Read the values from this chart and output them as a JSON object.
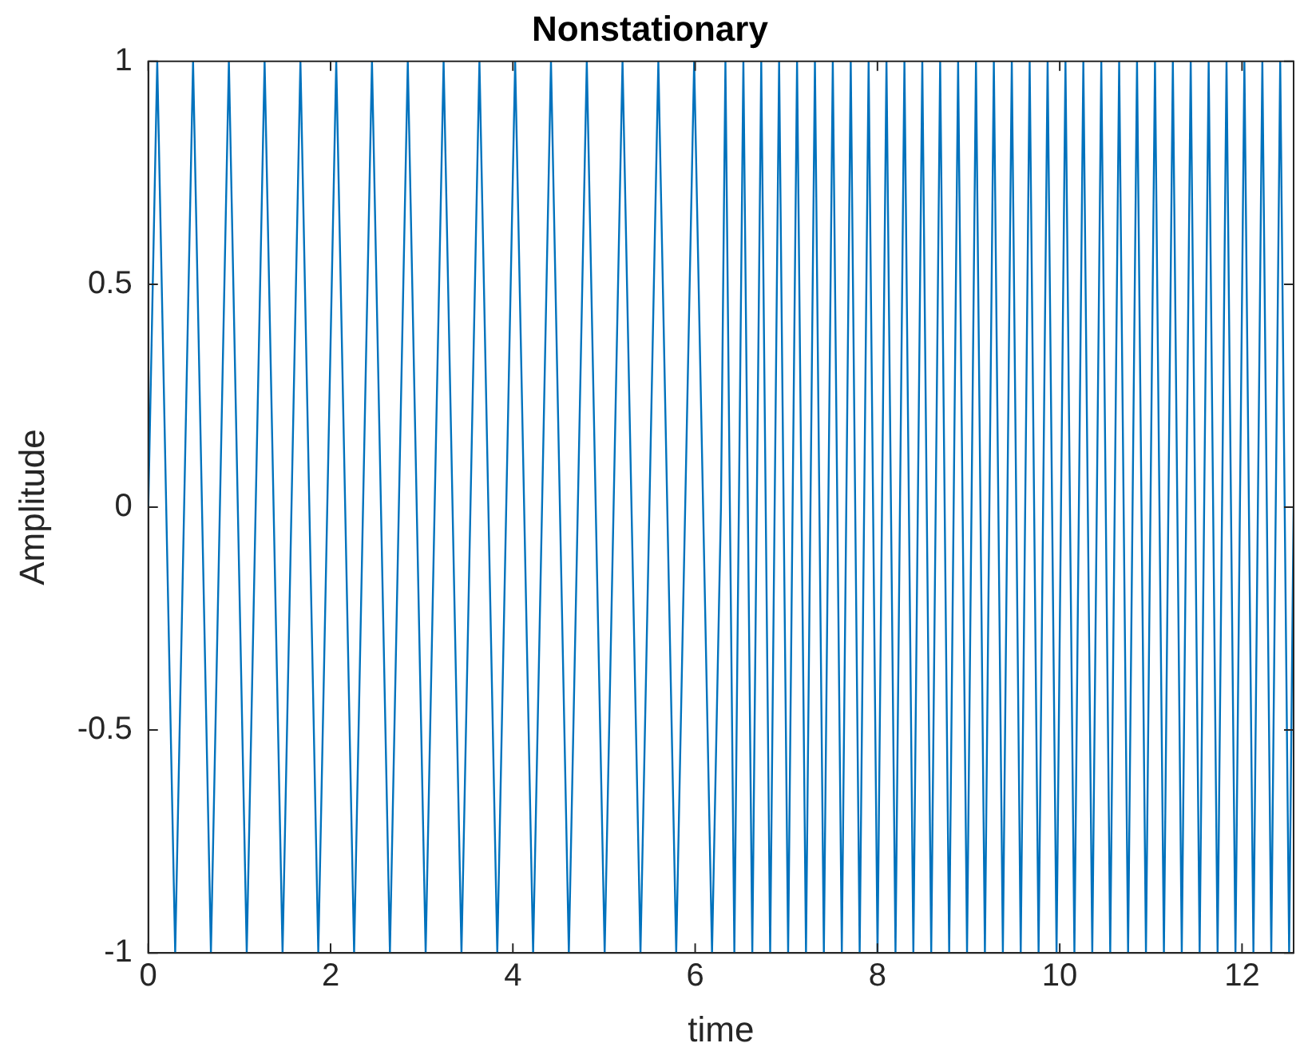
{
  "chart_data": {
    "type": "line",
    "title": "Nonstationary",
    "xlabel": "time",
    "ylabel": "Amplitude",
    "color": "#0072bd",
    "grid": false,
    "legend": false,
    "marker": "none",
    "line_style": "solid",
    "xlim": [
      0,
      12.566
    ],
    "xticks": [
      0,
      2,
      4,
      6,
      8,
      10,
      12
    ],
    "ylim": [
      -1,
      1
    ],
    "yticks": [
      -1,
      -0.5,
      0,
      0.5,
      1
    ],
    "x": [
      0,
      0.098,
      0.295,
      0.491,
      0.687,
      0.884,
      1.08,
      1.276,
      1.473,
      1.669,
      1.865,
      2.062,
      2.258,
      2.454,
      2.651,
      2.847,
      3.043,
      3.24,
      3.436,
      3.633,
      3.829,
      4.025,
      4.222,
      4.418,
      4.614,
      4.811,
      5.007,
      5.203,
      5.4,
      5.596,
      5.792,
      5.989,
      6.185,
      6.283,
      6.332,
      6.43,
      6.529,
      6.627,
      6.725,
      6.823,
      6.921,
      7.02,
      7.118,
      7.216,
      7.314,
      7.412,
      7.51,
      7.609,
      7.707,
      7.805,
      7.903,
      8.001,
      8.099,
      8.198,
      8.296,
      8.394,
      8.492,
      8.59,
      8.688,
      8.787,
      8.885,
      8.983,
      9.081,
      9.179,
      9.277,
      9.376,
      9.474,
      9.572,
      9.67,
      9.768,
      9.867,
      9.965,
      10.063,
      10.161,
      10.259,
      10.357,
      10.456,
      10.554,
      10.652,
      10.75,
      10.848,
      10.946,
      11.045,
      11.143,
      11.241,
      11.339,
      11.437,
      11.535,
      11.634,
      11.732,
      11.83,
      11.928,
      12.026,
      12.125,
      12.223,
      12.321,
      12.419,
      12.517,
      12.566
    ],
    "values": [
      0,
      1,
      -1,
      1,
      -1,
      1,
      -1,
      1,
      -1,
      1,
      -1,
      1,
      -1,
      1,
      -1,
      1,
      -1,
      1,
      -1,
      1,
      -1,
      1,
      -1,
      1,
      -1,
      1,
      -1,
      1,
      -1,
      1,
      -1,
      1,
      -1,
      0,
      1,
      -1,
      1,
      -1,
      1,
      -1,
      1,
      -1,
      1,
      -1,
      1,
      -1,
      1,
      -1,
      1,
      -1,
      1,
      -1,
      1,
      -1,
      1,
      -1,
      1,
      -1,
      1,
      -1,
      1,
      -1,
      1,
      -1,
      1,
      -1,
      1,
      -1,
      1,
      -1,
      1,
      -1,
      1,
      -1,
      1,
      -1,
      1,
      -1,
      1,
      -1,
      1,
      -1,
      1,
      -1,
      1,
      -1,
      1,
      -1,
      1,
      -1,
      1,
      -1,
      1,
      -1,
      1,
      -1,
      1,
      -1,
      0
    ]
  }
}
